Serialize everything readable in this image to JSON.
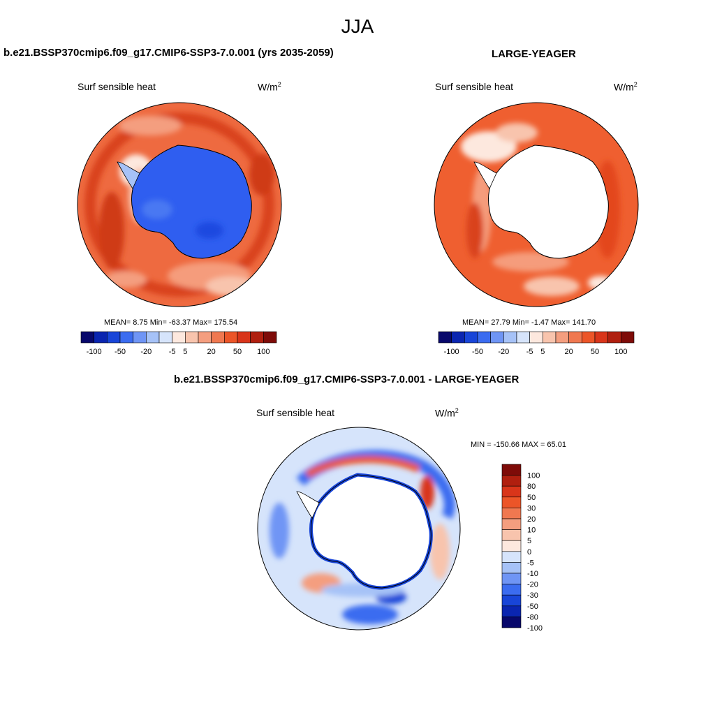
{
  "figure": {
    "title": "JJA"
  },
  "panels": [
    {
      "title": "b.e21.BSSP370cmip6.f09_g17.CMIP6-SSP3-7.0.001 (yrs 2035-2059)",
      "variable": "Surf sensible heat",
      "units_base": "W/m",
      "units_exp": "2",
      "stats_text": "MEAN=   8.75  Min= -63.37  Max= 175.54"
    },
    {
      "title": "LARGE-YEAGER",
      "variable": "Surf sensible heat",
      "units_base": "W/m",
      "units_exp": "2",
      "stats_text": "MEAN=   27.79  Min=  -1.47  Max= 141.70"
    },
    {
      "title": "b.e21.BSSP370cmip6.f09_g17.CMIP6-SSP3-7.0.001 - LARGE-YEAGER",
      "variable": "Surf sensible heat",
      "units_base": "W/m",
      "units_exp": "2",
      "stats_text": "MIN = -150.66 MAX =  65.01"
    }
  ],
  "colorbar_top": {
    "labels": [
      "-100",
      "-50",
      "-20",
      "-5",
      "5",
      "20",
      "50",
      "100"
    ],
    "colors": [
      "#08086b",
      "#0a25b0",
      "#1845d8",
      "#3b6cf0",
      "#6f95f5",
      "#a6c2f7",
      "#d6e4fb",
      "#fde8de",
      "#f8c4ad",
      "#f49e7f",
      "#f07850",
      "#ec5528",
      "#d9351a",
      "#b01f0f",
      "#7e0b08"
    ]
  },
  "colorbar_diff": {
    "labels": [
      "100",
      "80",
      "50",
      "30",
      "20",
      "10",
      "5",
      "0",
      "-5",
      "-10",
      "-20",
      "-30",
      "-50",
      "-80",
      "-100"
    ],
    "colors": [
      "#7e0b08",
      "#b01f0f",
      "#d9351a",
      "#ec5528",
      "#f07850",
      "#f49e7f",
      "#f8c4ad",
      "#fde8de",
      "#d6e4fb",
      "#a6c2f7",
      "#6f95f5",
      "#3b6cf0",
      "#1845d8",
      "#0a25b0",
      "#08086b"
    ]
  },
  "chart_data": [
    {
      "type": "heatmap",
      "title": "b.e21.BSSP370cmip6.f09_g17.CMIP6-SSP3-7.0.001 (yrs 2035-2059)",
      "variable": "Surf sensible heat",
      "units": "W/m2",
      "projection": "south polar stereographic",
      "stats": {
        "mean": 8.75,
        "min": -63.37,
        "max": 175.54
      },
      "contour_levels": [
        -100,
        -50,
        -20,
        -5,
        5,
        20,
        50,
        100
      ]
    },
    {
      "type": "heatmap",
      "title": "LARGE-YEAGER",
      "variable": "Surf sensible heat",
      "units": "W/m2",
      "projection": "south polar stereographic",
      "stats": {
        "mean": 27.79,
        "min": -1.47,
        "max": 141.7
      },
      "contour_levels": [
        -100,
        -50,
        -20,
        -5,
        5,
        20,
        50,
        100
      ]
    },
    {
      "type": "heatmap",
      "title": "b.e21.BSSP370cmip6.f09_g17.CMIP6-SSP3-7.0.001 - LARGE-YEAGER",
      "variable": "Surf sensible heat",
      "units": "W/m2",
      "projection": "south polar stereographic",
      "stats": {
        "min": -150.66,
        "max": 65.01
      },
      "contour_levels": [
        100,
        80,
        50,
        30,
        20,
        10,
        5,
        0,
        -5,
        -10,
        -20,
        -30,
        -50,
        -80,
        -100
      ]
    }
  ]
}
